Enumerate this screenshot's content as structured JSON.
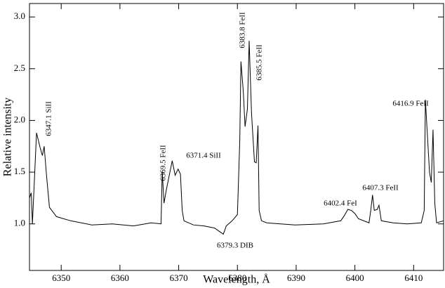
{
  "chart_data": {
    "type": "line",
    "x_label": "Wavelength, Å",
    "y_label": "Relative intensity",
    "xlim": [
      6344.6,
      6415.1
    ],
    "ylim": [
      0.55,
      3.13
    ],
    "xticks": [
      6350,
      6360,
      6370,
      6380,
      6390,
      6400,
      6410
    ],
    "yticks": [
      {
        "value": 1,
        "label": "1.0"
      },
      1.5,
      {
        "value": 2,
        "label": "2.0"
      },
      2.5,
      {
        "value": 3,
        "label": "3.0"
      }
    ],
    "x": [
      6344.6,
      6344.9,
      6345.1,
      6345.8,
      6346.4,
      6346.8,
      6347.1,
      6347.5,
      6348.0,
      6349.2,
      6351.6,
      6355.2,
      6358.7,
      6362.3,
      6365.3,
      6367.0,
      6367.2,
      6367.5,
      6367.9,
      6368.4,
      6368.9,
      6369.4,
      6369.9,
      6370.3,
      6370.6,
      6370.9,
      6372.5,
      6374.3,
      6376.1,
      6377.6,
      6378.1,
      6379.1,
      6380.0,
      6380.4,
      6380.6,
      6381.0,
      6381.3,
      6381.7,
      6382.0,
      6382.4,
      6382.9,
      6383.2,
      6383.5,
      6383.7,
      6384.1,
      6385.0,
      6389.8,
      6394.6,
      6397.6,
      6398.2,
      6398.8,
      6399.4,
      6400.0,
      6400.6,
      6402.4,
      6402.7,
      6403.0,
      6403.3,
      6403.8,
      6404.1,
      6404.5,
      6406.5,
      6408.9,
      6411.3,
      6411.8,
      6412.0,
      6412.4,
      6412.7,
      6413.0,
      6413.3,
      6413.6,
      6413.9,
      6415.1
    ],
    "series": [
      {
        "color": "#000000",
        "values": [
          1.25,
          1.3,
          1.0,
          1.88,
          1.74,
          1.66,
          1.75,
          1.47,
          1.16,
          1.07,
          1.03,
          0.99,
          1.0,
          0.98,
          1.01,
          1.0,
          1.51,
          1.2,
          1.33,
          1.47,
          1.61,
          1.47,
          1.53,
          1.48,
          1.13,
          1.03,
          0.99,
          0.98,
          0.96,
          0.9,
          0.98,
          1.03,
          1.09,
          1.8,
          2.57,
          2.28,
          1.94,
          2.11,
          2.77,
          2.07,
          1.6,
          1.59,
          1.95,
          1.13,
          1.03,
          1.01,
          0.99,
          1.0,
          1.03,
          1.08,
          1.14,
          1.13,
          1.1,
          1.05,
          1.01,
          1.13,
          1.28,
          1.13,
          1.14,
          1.18,
          1.03,
          1.01,
          1.0,
          1.01,
          1.13,
          2.2,
          1.8,
          1.5,
          1.4,
          1.91,
          1.2,
          1.01,
          1.03
        ]
      }
    ],
    "annotations": [
      "6347.1 SiII",
      "6369.5 FeII",
      "6371.4 SiII",
      "6383.8 FeII",
      "6385.5 FeII",
      "6379.3 DIB",
      "6402.4 FeI",
      "6407.3 FeII",
      "6416.9 FeII"
    ]
  }
}
